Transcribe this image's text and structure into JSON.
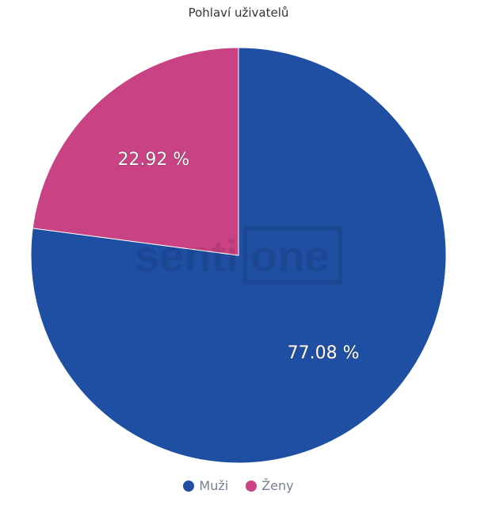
{
  "chart_data": {
    "type": "pie",
    "title": "Pohlaví uživatelů",
    "slices": [
      {
        "name": "Muži",
        "value": 77.08,
        "label": "77.08 %",
        "color": "#1f4fa3"
      },
      {
        "name": "Ženy",
        "value": 22.92,
        "label": "22.92 %",
        "color": "#c94283"
      }
    ],
    "legend_placement": "bottom",
    "watermark": "sentione"
  }
}
